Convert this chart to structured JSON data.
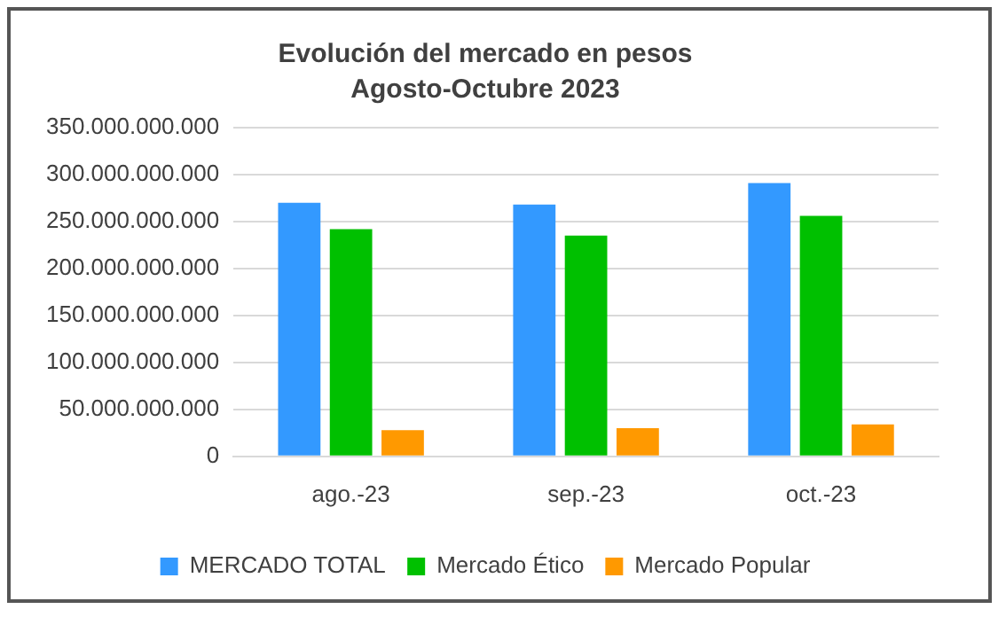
{
  "chart_data": {
    "type": "bar",
    "title": "Evolución del mercado en pesos",
    "subtitle": "Agosto-Octubre 2023",
    "categories": [
      "ago.-23",
      "sep.-23",
      "oct.-23"
    ],
    "series": [
      {
        "name": "MERCADO TOTAL",
        "color": "#3399ff",
        "values": [
          270000000000,
          268000000000,
          291000000000
        ]
      },
      {
        "name": "Mercado Ético",
        "color": "#00c000",
        "values": [
          242000000000,
          235000000000,
          256000000000
        ]
      },
      {
        "name": "Mercado Popular",
        "color": "#ff9900",
        "values": [
          28000000000,
          30000000000,
          34000000000
        ]
      }
    ],
    "ylim": [
      0,
      350000000000
    ],
    "yticks": [
      {
        "value": 0,
        "label": "0"
      },
      {
        "value": 50000000000,
        "label": "50.000.000.000"
      },
      {
        "value": 100000000000,
        "label": "100.000.000.000"
      },
      {
        "value": 150000000000,
        "label": "150.000.000.000"
      },
      {
        "value": 200000000000,
        "label": "200.000.000.000"
      },
      {
        "value": 250000000000,
        "label": "250.000.000.000"
      },
      {
        "value": 300000000000,
        "label": "300.000.000.000"
      },
      {
        "value": 350000000000,
        "label": "350.000.000.000"
      }
    ],
    "grid": "y",
    "legend": "bottom"
  }
}
